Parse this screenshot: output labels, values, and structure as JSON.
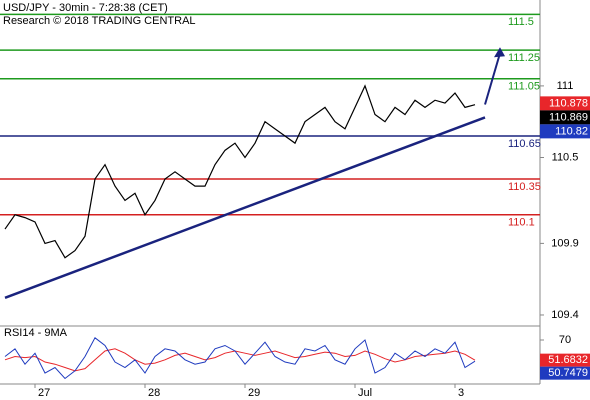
{
  "chart_data": {
    "type": "line",
    "title": "USD/JPY - 30min - 7:28:38 (CET)",
    "subtitle": "Research © 2018 TRADING CENTRAL",
    "categories": [
      null,
      null,
      null,
      "27",
      null,
      null,
      null,
      null,
      null,
      null,
      null,
      null,
      null,
      null,
      "28",
      null,
      null,
      null,
      null,
      null,
      null,
      null,
      null,
      null,
      "29",
      null,
      null,
      null,
      null,
      null,
      null,
      null,
      null,
      null,
      null,
      "Jul",
      null,
      null,
      null,
      null,
      null,
      null,
      null,
      null,
      null,
      "3",
      null,
      null
    ],
    "series": [
      {
        "name": "USD/JPY",
        "color": "#000000",
        "values": [
          110.0,
          110.1,
          110.08,
          110.05,
          109.9,
          109.92,
          109.8,
          109.85,
          109.95,
          110.35,
          110.45,
          110.3,
          110.2,
          110.25,
          110.1,
          110.2,
          110.35,
          110.4,
          110.35,
          110.3,
          110.3,
          110.45,
          110.55,
          110.6,
          110.5,
          110.6,
          110.75,
          110.7,
          110.65,
          110.6,
          110.75,
          110.8,
          110.85,
          110.75,
          110.7,
          110.85,
          111.0,
          110.8,
          110.75,
          110.85,
          110.8,
          110.9,
          110.85,
          110.9,
          110.88,
          110.95,
          110.85,
          110.869
        ]
      }
    ],
    "ylim": [
      109.33,
      111.6
    ],
    "yticks": [
      111.0,
      110.5,
      109.9,
      109.4
    ],
    "levels": [
      {
        "value": 111.5,
        "color": "#1e9a1e"
      },
      {
        "value": 111.25,
        "color": "#1e9a1e"
      },
      {
        "value": 111.05,
        "color": "#1e9a1e"
      },
      {
        "value": 110.65,
        "color": "#1a237e"
      },
      {
        "value": 110.35,
        "color": "#d42020"
      },
      {
        "value": 110.1,
        "color": "#d42020"
      }
    ],
    "trendline": {
      "x": [
        0,
        48
      ],
      "values": [
        109.52,
        110.78
      ],
      "color": "#1a237e"
    },
    "arrow": {
      "x": [
        48,
        49.5
      ],
      "values": [
        110.87,
        111.27
      ],
      "color": "#1a237e"
    },
    "price_markers": [
      {
        "value": 110.878,
        "color": "#e8262a"
      },
      {
        "value": 110.869,
        "color": "#000000"
      },
      {
        "value": 110.82,
        "color": "#1f3bbf"
      }
    ],
    "rsi": {
      "label": "RSI14 - 9MA",
      "ylim": [
        29.1,
        80.9
      ],
      "yticks": [
        70
      ],
      "series": [
        {
          "name": "RSI14",
          "color": "#1f3bbf",
          "values": [
            55,
            62,
            48,
            58,
            40,
            45,
            35,
            42,
            55,
            72,
            65,
            50,
            45,
            52,
            40,
            55,
            62,
            60,
            52,
            48,
            50,
            62,
            65,
            60,
            48,
            58,
            68,
            55,
            50,
            48,
            62,
            60,
            65,
            52,
            48,
            62,
            70,
            40,
            45,
            58,
            52,
            60,
            55,
            62,
            58,
            68,
            45,
            50.7479
          ]
        },
        {
          "name": "9MA",
          "color": "#e8262a",
          "values": [
            52,
            55,
            54,
            55,
            50,
            48,
            45,
            42,
            44,
            52,
            60,
            62,
            58,
            52,
            48,
            49,
            52,
            56,
            58,
            55,
            52,
            54,
            58,
            60,
            58,
            56,
            58,
            60,
            57,
            54,
            55,
            57,
            59,
            58,
            55,
            56,
            60,
            57,
            53,
            50,
            52,
            55,
            56,
            57,
            58,
            60,
            57,
            51.6832
          ]
        }
      ]
    }
  }
}
